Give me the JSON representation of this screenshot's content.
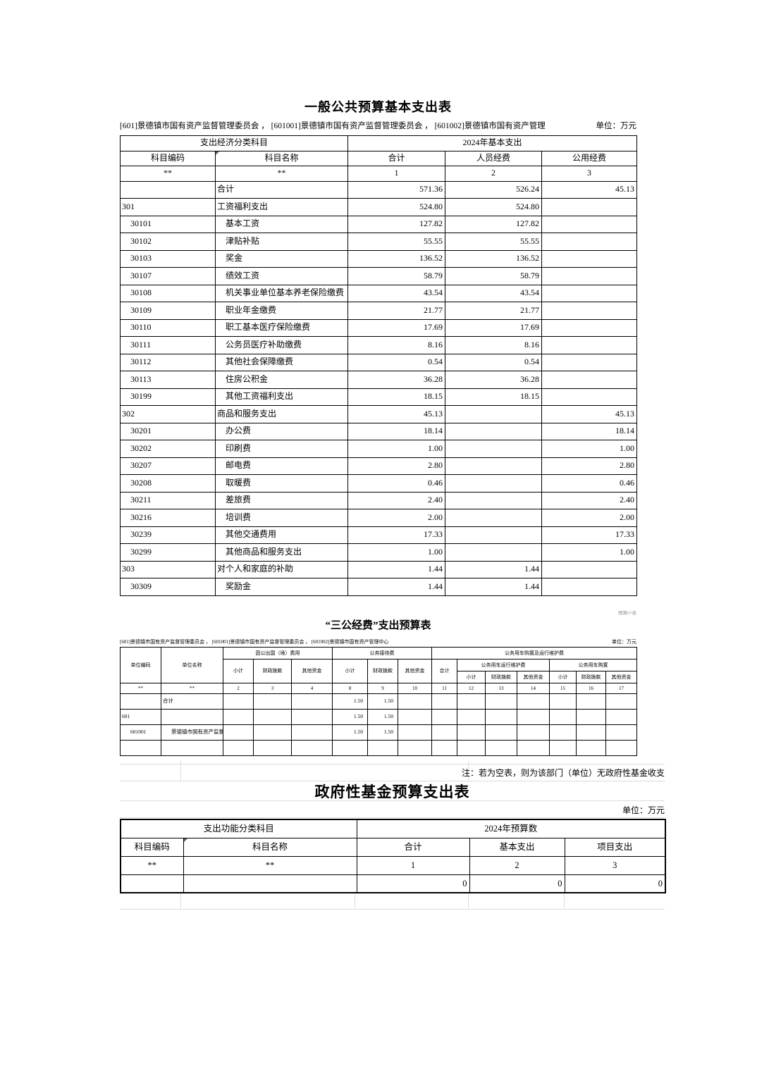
{
  "table1": {
    "title": "一般公共预算基本支出表",
    "subtitle": "[601]景德镇市国有资产监督管理委员会 ， [601001]景德镇市国有资产监督管理委员会 ， [601002]景德镇市国有资产管理",
    "unit": "单位：万元",
    "header": {
      "group_left": "支出经济分类科目",
      "group_right": "2024年基本支出",
      "cols": [
        "科目编码",
        "科目名称",
        "合计",
        "人员经费",
        "公用经费"
      ],
      "nums": [
        "**",
        "**",
        "1",
        "2",
        "3"
      ]
    },
    "rows": [
      {
        "level": 0,
        "cells": [
          "",
          "合计",
          "571.36",
          "526.24",
          "45.13"
        ]
      },
      {
        "level": 0,
        "cells": [
          "301",
          "工资福利支出",
          "524.80",
          "524.80",
          ""
        ]
      },
      {
        "level": 1,
        "cells": [
          "30101",
          "基本工资",
          "127.82",
          "127.82",
          ""
        ]
      },
      {
        "level": 1,
        "cells": [
          "30102",
          "津贴补贴",
          "55.55",
          "55.55",
          ""
        ]
      },
      {
        "level": 1,
        "cells": [
          "30103",
          "奖金",
          "136.52",
          "136.52",
          ""
        ]
      },
      {
        "level": 1,
        "cells": [
          "30107",
          "绩效工资",
          "58.79",
          "58.79",
          ""
        ]
      },
      {
        "level": 1,
        "cells": [
          "30108",
          "机关事业单位基本养老保险缴费",
          "43.54",
          "43.54",
          ""
        ]
      },
      {
        "level": 1,
        "cells": [
          "30109",
          "职业年金缴费",
          "21.77",
          "21.77",
          ""
        ]
      },
      {
        "level": 1,
        "cells": [
          "30110",
          "职工基本医疗保险缴费",
          "17.69",
          "17.69",
          ""
        ]
      },
      {
        "level": 1,
        "cells": [
          "30111",
          "公务员医疗补助缴费",
          "8.16",
          "8.16",
          ""
        ]
      },
      {
        "level": 1,
        "cells": [
          "30112",
          "其他社会保障缴费",
          "0.54",
          "0.54",
          ""
        ]
      },
      {
        "level": 1,
        "cells": [
          "30113",
          "住房公积金",
          "36.28",
          "36.28",
          ""
        ]
      },
      {
        "level": 1,
        "cells": [
          "30199",
          "其他工资福利支出",
          "18.15",
          "18.15",
          ""
        ]
      },
      {
        "level": 0,
        "cells": [
          "302",
          "商品和服务支出",
          "45.13",
          "",
          "45.13"
        ]
      },
      {
        "level": 1,
        "cells": [
          "30201",
          "办公费",
          "18.14",
          "",
          "18.14"
        ]
      },
      {
        "level": 1,
        "cells": [
          "30202",
          "印刷费",
          "1.00",
          "",
          "1.00"
        ]
      },
      {
        "level": 1,
        "cells": [
          "30207",
          "邮电费",
          "2.80",
          "",
          "2.80"
        ]
      },
      {
        "level": 1,
        "cells": [
          "30208",
          "取暖费",
          "0.46",
          "",
          "0.46"
        ]
      },
      {
        "level": 1,
        "cells": [
          "30211",
          "差旅费",
          "2.40",
          "",
          "2.40"
        ]
      },
      {
        "level": 1,
        "cells": [
          "30216",
          "培训费",
          "2.00",
          "",
          "2.00"
        ]
      },
      {
        "level": 1,
        "cells": [
          "30239",
          "其他交通费用",
          "17.33",
          "",
          "17.33"
        ]
      },
      {
        "level": 1,
        "cells": [
          "30299",
          "其他商品和服务支出",
          "1.00",
          "",
          "1.00"
        ]
      },
      {
        "level": 0,
        "cells": [
          "303",
          "对个人和家庭的补助",
          "1.44",
          "1.44",
          ""
        ]
      },
      {
        "level": 1,
        "cells": [
          "30309",
          "奖励金",
          "1.44",
          "1.44",
          ""
        ]
      }
    ]
  },
  "table2": {
    "badge": "预算07表",
    "title": "“三公经费”支出预算表",
    "subtitle": "[601]景德镇市国有资产监督管理委员会 ， [601001]景德镇市国有资产监督管理委员会 ， [601002]景德镇市国有资产管理中心",
    "unit": "单位：万元",
    "header": {
      "col_code": "单位编码",
      "col_name": "单位名称",
      "g1": "因公出国（境）费用",
      "g2": "公务接待费",
      "g3": "公务用车购置及运行维护费",
      "g3_total": "合计",
      "g3a": "公务用车运行维护费",
      "g3b": "公务用车购置",
      "sub": [
        "小计",
        "财政拨款",
        "其他资金"
      ]
    },
    "nums": [
      "**",
      "**",
      "2",
      "3",
      "4",
      "8",
      "9",
      "10",
      "11",
      "12",
      "13",
      "14",
      "15",
      "16",
      "17"
    ],
    "rows": [
      {
        "level": 0,
        "cells": [
          "",
          "合计",
          "",
          "",
          "",
          "1.50",
          "1.50",
          "",
          "",
          "",
          "",
          "",
          "",
          "",
          ""
        ]
      },
      {
        "level": 0,
        "cells": [
          "601",
          "",
          "",
          "",
          "",
          "1.50",
          "1.50",
          "",
          "",
          "",
          "",
          "",
          "",
          "",
          ""
        ]
      },
      {
        "level": 1,
        "cells": [
          "601001",
          "景德镇市国有资产监督管理委员会",
          "",
          "",
          "",
          "1.50",
          "1.50",
          "",
          "",
          "",
          "",
          "",
          "",
          "",
          ""
        ]
      },
      {
        "level": 0,
        "cells": [
          "",
          "",
          "",
          "",
          "",
          "",
          "",
          "",
          "",
          "",
          "",
          "",
          "",
          "",
          ""
        ]
      }
    ]
  },
  "table3": {
    "note": "注：若为空表，则为该部门（单位）无政府性基金收支",
    "title": "政府性基金预算支出表",
    "unit": "单位：万元",
    "header": {
      "group_left": "支出功能分类科目",
      "group_right": "2024年预算数",
      "cols": [
        "科目编码",
        "科目名称",
        "合计",
        "基本支出",
        "项目支出"
      ],
      "nums": [
        "**",
        "**",
        "1",
        "2",
        "3"
      ]
    },
    "rows": [
      {
        "level": 0,
        "cells": [
          "",
          "",
          "0",
          "0",
          "0"
        ]
      }
    ]
  }
}
